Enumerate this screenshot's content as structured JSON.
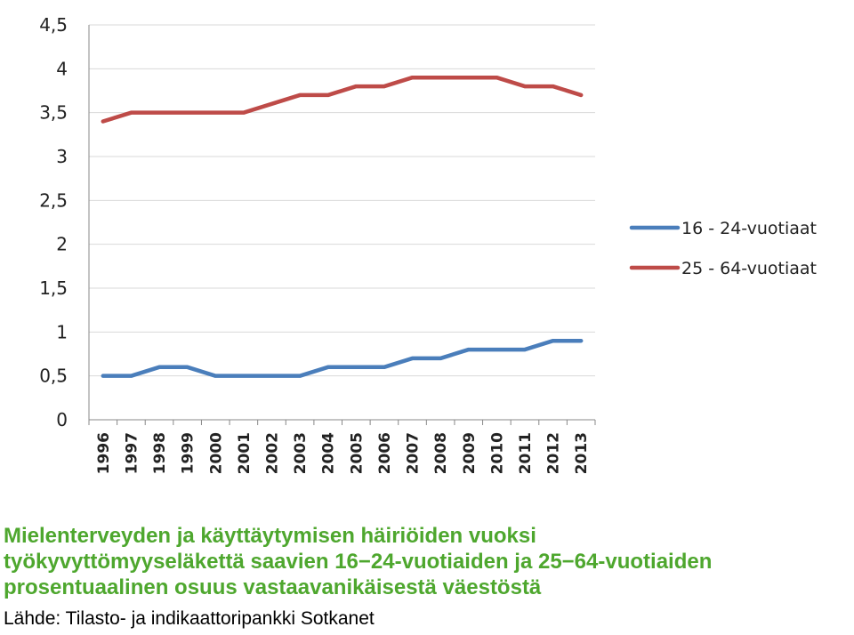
{
  "caption": {
    "line1": "Mielenterveyden ja käyttäytymisen häiriöiden vuoksi",
    "line2": "työkyvyttömyyseläkettä saavien 16−24-vuotiaiden ja 25−64-vuotiaiden",
    "line3": "prosentuaalinen osuus vastaavanikäisestä väestöstä"
  },
  "source": "Lähde: Tilasto- ja indikaattoripankki Sotkanet",
  "colors": {
    "series1": "#4a7ebb",
    "series2": "#be4b48",
    "caption": "#4ea72e",
    "grid": "#d9d9d9"
  },
  "chart_data": {
    "type": "line",
    "title": "",
    "xlabel": "",
    "ylabel": "",
    "ylim": [
      0,
      4.5
    ],
    "yticks": [
      "0",
      "0,5",
      "1",
      "1,5",
      "2",
      "2,5",
      "3",
      "3,5",
      "4",
      "4,5"
    ],
    "categories": [
      "1996",
      "1997",
      "1998",
      "1999",
      "2000",
      "2001",
      "2002",
      "2003",
      "2004",
      "2005",
      "2006",
      "2007",
      "2008",
      "2009",
      "2010",
      "2011",
      "2012",
      "2013"
    ],
    "grid": true,
    "legend_position": "right",
    "series": [
      {
        "name": "16 - 24-vuotiaat",
        "color": "#4a7ebb",
        "values": [
          0.5,
          0.5,
          0.6,
          0.6,
          0.5,
          0.5,
          0.5,
          0.5,
          0.6,
          0.6,
          0.6,
          0.7,
          0.7,
          0.8,
          0.8,
          0.8,
          0.9,
          0.9
        ]
      },
      {
        "name": "25 - 64-vuotiaat",
        "color": "#be4b48",
        "values": [
          3.4,
          3.5,
          3.5,
          3.5,
          3.5,
          3.5,
          3.6,
          3.7,
          3.7,
          3.8,
          3.8,
          3.9,
          3.9,
          3.9,
          3.9,
          3.8,
          3.8,
          3.7
        ]
      }
    ]
  }
}
